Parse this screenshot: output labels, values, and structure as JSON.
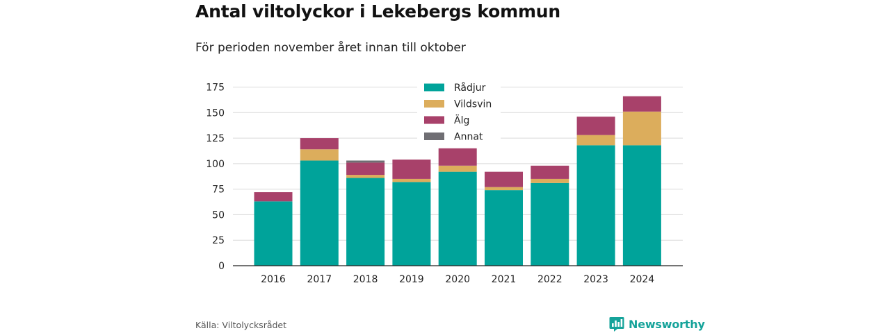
{
  "title": "Antal viltolyckor i Lekebergs kommun",
  "subtitle": "För perioden november året innan till oktober",
  "source": "Källa: Viltolycksrådet",
  "brand": {
    "name": "Newsworthy",
    "icon": "newsworthy-logo-icon",
    "color": "#15a39a"
  },
  "chart_data": {
    "type": "bar",
    "stacked": true,
    "categories": [
      "2016",
      "2017",
      "2018",
      "2019",
      "2020",
      "2021",
      "2022",
      "2023",
      "2024"
    ],
    "series": [
      {
        "name": "Rådjur",
        "color": "#00a39a",
        "values": [
          63,
          103,
          86,
          82,
          92,
          74,
          81,
          118,
          118
        ]
      },
      {
        "name": "Vildsvin",
        "color": "#dcad5c",
        "values": [
          0,
          11,
          3,
          3,
          6,
          3,
          4,
          10,
          33
        ]
      },
      {
        "name": "Älg",
        "color": "#a8416a",
        "values": [
          9,
          11,
          12,
          19,
          17,
          15,
          13,
          18,
          15
        ]
      },
      {
        "name": "Annat",
        "color": "#6f6e73",
        "values": [
          0,
          0,
          2,
          0,
          0,
          0,
          0,
          0,
          0
        ]
      }
    ],
    "yticks": [
      0,
      25,
      50,
      75,
      100,
      125,
      150,
      175
    ],
    "ylim": [
      0,
      175
    ],
    "grid": true,
    "legend_position": "top-center",
    "xlabel": "",
    "ylabel": ""
  }
}
